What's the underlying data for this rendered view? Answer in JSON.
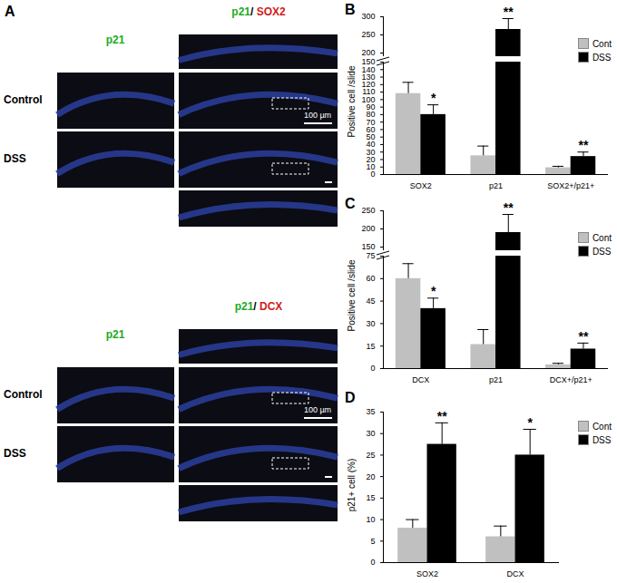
{
  "image_panel": {
    "label": "A",
    "blocks": [
      {
        "single_channel": "p21",
        "overlay": [
          "p21",
          "/ ",
          "SOX2"
        ],
        "rows": [
          "Control",
          "DSS"
        ],
        "scale_bar": "100 µm"
      },
      {
        "single_channel": "p21",
        "overlay": [
          "p21",
          "/ ",
          "DCX"
        ],
        "rows": [
          "Control",
          "DSS"
        ],
        "scale_bar": "100 µm"
      }
    ]
  },
  "chart_data": [
    {
      "type": "bar",
      "title": "B",
      "y_label": "Positive cell /slide",
      "categories": [
        "SOX2",
        "p21",
        "SOX2+/p21+"
      ],
      "series": [
        {
          "name": "Cont",
          "color": "#c0c0c0",
          "values": [
            108,
            25,
            9
          ],
          "errors": [
            15,
            13,
            2
          ]
        },
        {
          "name": "DSS",
          "color": "#000000",
          "values": [
            80,
            265,
            24
          ],
          "errors": [
            13,
            30,
            6
          ]
        }
      ],
      "significance": [
        "*",
        "**",
        "**"
      ],
      "ylim": [
        0,
        300
      ],
      "y_break": [
        150,
        190
      ],
      "yticks": [
        0,
        10,
        20,
        30,
        40,
        50,
        60,
        70,
        80,
        90,
        100,
        110,
        120,
        130,
        140,
        150,
        200,
        250,
        300
      ],
      "legend": "top-right"
    },
    {
      "type": "bar",
      "title": "C",
      "y_label": "Positive cell /slide",
      "categories": [
        "DCX",
        "p21",
        "DCX+/p21+"
      ],
      "series": [
        {
          "name": "Cont",
          "color": "#c0c0c0",
          "values": [
            60,
            16,
            2.5
          ],
          "errors": [
            10,
            10,
            1
          ]
        },
        {
          "name": "DSS",
          "color": "#000000",
          "values": [
            40,
            190,
            13
          ],
          "errors": [
            7,
            50,
            4
          ]
        }
      ],
      "significance": [
        "*",
        "**",
        "**"
      ],
      "ylim": [
        0,
        250
      ],
      "y_break": [
        75,
        140
      ],
      "yticks": [
        0,
        15,
        30,
        45,
        60,
        75,
        150,
        200,
        250
      ],
      "legend": "top-right"
    },
    {
      "type": "bar",
      "title": "D",
      "y_label": "p21+ cell (%)",
      "categories": [
        "SOX2",
        "DCX"
      ],
      "series": [
        {
          "name": "Cont",
          "color": "#c0c0c0",
          "values": [
            8,
            6
          ],
          "errors": [
            2,
            2.5
          ]
        },
        {
          "name": "DSS",
          "color": "#000000",
          "values": [
            27.5,
            25
          ],
          "errors": [
            5,
            6
          ]
        }
      ],
      "significance": [
        "**",
        "*"
      ],
      "ylim": [
        0,
        35
      ],
      "yticks": [
        0,
        5,
        10,
        15,
        20,
        25,
        30,
        35
      ],
      "legend": "top-right"
    }
  ]
}
